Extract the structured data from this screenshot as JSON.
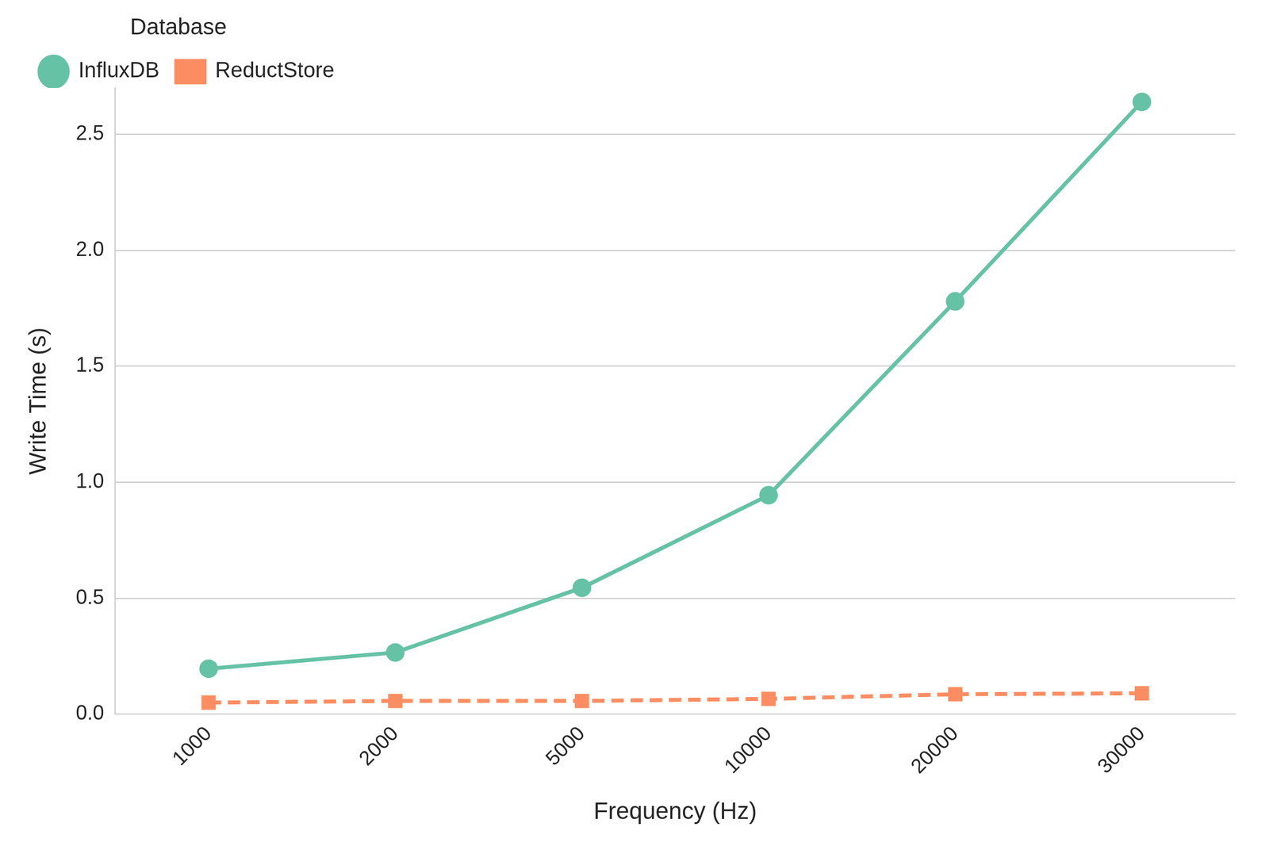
{
  "chart_data": {
    "type": "line",
    "x_label": "Frequency (Hz)",
    "y_label": "Write Time (s)",
    "legend_title": "Database",
    "legend": "upper left",
    "grid": true,
    "categories": [
      "1000",
      "2000",
      "5000",
      "10000",
      "20000",
      "30000"
    ],
    "series": [
      {
        "name": "InfluxDB",
        "color": "#66c2a5",
        "marker": "circle",
        "line_style": "solid",
        "values": [
          0.196,
          0.266,
          0.545,
          0.944,
          1.78,
          2.64
        ]
      },
      {
        "name": "ReductStore",
        "color": "#fc8d62",
        "marker": "square",
        "line_style": "dashed",
        "values": [
          0.05,
          0.057,
          0.057,
          0.066,
          0.086,
          0.09
        ]
      }
    ],
    "ylim": [
      0,
      2.7
    ],
    "yticks": [
      {
        "value": 0,
        "label": "0.0"
      },
      0.5,
      {
        "value": 1,
        "label": "1.0"
      },
      1.5,
      {
        "value": 2,
        "label": "2.0"
      },
      2.5
    ]
  }
}
